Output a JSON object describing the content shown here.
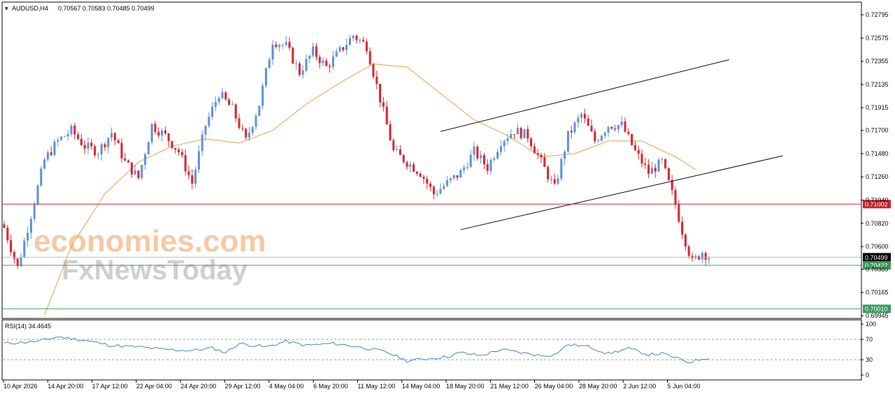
{
  "header": {
    "symbol": "AUDUSD,H4",
    "ohlc": "0.70567 0.70583 0.70485 0.70499"
  },
  "watermark": {
    "line1": "economies.com",
    "line2": "FxNewsToday"
  },
  "rsi_header": "RSI(14) 34.4645",
  "colors": {
    "bull": "#5b8fd6",
    "bear": "#d8202a",
    "ma": "#e0a040",
    "rsi": "#3f80c8",
    "resistance": "#c8202a",
    "support": "#3a9a5a",
    "price_tag": "#000000"
  },
  "price_tags": {
    "resistance": "0.71002",
    "current": "0.70499",
    "support1": "0.70422",
    "support2": "0.70010"
  },
  "chart_data": [
    {
      "type": "candlestick",
      "title": "AUDUSD,H4",
      "ylim": [
        0.69945,
        0.7279
      ],
      "y_ticks": [
        "0.72795",
        "0.72575",
        "0.72355",
        "0.72135",
        "0.71915",
        "0.71700",
        "0.71480",
        "0.71260",
        "0.71040",
        "0.70820",
        "0.70600",
        "0.70385",
        "0.70165",
        "0.69945"
      ],
      "x_ticks": [
        "10 Apr 2026",
        "14 Apr 20:00",
        "17 Apr 12:00",
        "22 Apr 04:00",
        "24 Apr 20:00",
        "29 Apr 12:00",
        "4 May 04:00",
        "6 May 20:00",
        "11 May 12:00",
        "14 May 04:00",
        "18 May 20:00",
        "21 May 12:00",
        "26 May 04:00",
        "28 May 20:00",
        "2 Jun 12:00",
        "5 Jun 04:00"
      ],
      "close_anchors": [
        {
          "i": 0,
          "v": 0.7078
        },
        {
          "i": 4,
          "v": 0.704
        },
        {
          "i": 8,
          "v": 0.709
        },
        {
          "i": 12,
          "v": 0.7142
        },
        {
          "i": 16,
          "v": 0.716
        },
        {
          "i": 20,
          "v": 0.717
        },
        {
          "i": 24,
          "v": 0.7155
        },
        {
          "i": 28,
          "v": 0.715
        },
        {
          "i": 32,
          "v": 0.7168
        },
        {
          "i": 36,
          "v": 0.714
        },
        {
          "i": 40,
          "v": 0.7125
        },
        {
          "i": 44,
          "v": 0.7175
        },
        {
          "i": 48,
          "v": 0.7165
        },
        {
          "i": 52,
          "v": 0.715
        },
        {
          "i": 56,
          "v": 0.712
        },
        {
          "i": 60,
          "v": 0.7175
        },
        {
          "i": 64,
          "v": 0.7205
        },
        {
          "i": 68,
          "v": 0.719
        },
        {
          "i": 72,
          "v": 0.716
        },
        {
          "i": 76,
          "v": 0.7195
        },
        {
          "i": 80,
          "v": 0.7255
        },
        {
          "i": 84,
          "v": 0.725
        },
        {
          "i": 88,
          "v": 0.7225
        },
        {
          "i": 92,
          "v": 0.7245
        },
        {
          "i": 96,
          "v": 0.723
        },
        {
          "i": 100,
          "v": 0.7245
        },
        {
          "i": 104,
          "v": 0.726
        },
        {
          "i": 108,
          "v": 0.725
        },
        {
          "i": 112,
          "v": 0.72
        },
        {
          "i": 116,
          "v": 0.715
        },
        {
          "i": 120,
          "v": 0.714
        },
        {
          "i": 124,
          "v": 0.713
        },
        {
          "i": 128,
          "v": 0.711
        },
        {
          "i": 132,
          "v": 0.712
        },
        {
          "i": 136,
          "v": 0.713
        },
        {
          "i": 140,
          "v": 0.715
        },
        {
          "i": 144,
          "v": 0.7135
        },
        {
          "i": 148,
          "v": 0.716
        },
        {
          "i": 152,
          "v": 0.717
        },
        {
          "i": 156,
          "v": 0.7165
        },
        {
          "i": 160,
          "v": 0.714
        },
        {
          "i": 164,
          "v": 0.7115
        },
        {
          "i": 168,
          "v": 0.7165
        },
        {
          "i": 172,
          "v": 0.7185
        },
        {
          "i": 176,
          "v": 0.716
        },
        {
          "i": 180,
          "v": 0.7175
        },
        {
          "i": 184,
          "v": 0.7175
        },
        {
          "i": 188,
          "v": 0.715
        },
        {
          "i": 192,
          "v": 0.713
        },
        {
          "i": 196,
          "v": 0.714
        },
        {
          "i": 200,
          "v": 0.71
        },
        {
          "i": 202,
          "v": 0.7075
        },
        {
          "i": 205,
          "v": 0.7045
        },
        {
          "i": 208,
          "v": 0.7055
        },
        {
          "i": 210,
          "v": 0.705
        }
      ],
      "moving_average": [
        {
          "i": 12,
          "v": 0.6995
        },
        {
          "i": 20,
          "v": 0.706
        },
        {
          "i": 30,
          "v": 0.711
        },
        {
          "i": 40,
          "v": 0.714
        },
        {
          "i": 50,
          "v": 0.7155
        },
        {
          "i": 60,
          "v": 0.7162
        },
        {
          "i": 70,
          "v": 0.7158
        },
        {
          "i": 80,
          "v": 0.717
        },
        {
          "i": 90,
          "v": 0.7195
        },
        {
          "i": 100,
          "v": 0.7215
        },
        {
          "i": 110,
          "v": 0.7233
        },
        {
          "i": 120,
          "v": 0.723
        },
        {
          "i": 130,
          "v": 0.7205
        },
        {
          "i": 140,
          "v": 0.718
        },
        {
          "i": 150,
          "v": 0.7165
        },
        {
          "i": 160,
          "v": 0.7145
        },
        {
          "i": 170,
          "v": 0.7148
        },
        {
          "i": 180,
          "v": 0.716
        },
        {
          "i": 190,
          "v": 0.716
        },
        {
          "i": 200,
          "v": 0.7145
        },
        {
          "i": 206,
          "v": 0.7133
        }
      ],
      "trend_lines": [
        {
          "name": "channel-upper",
          "from": {
            "i": 130,
            "v": 0.7169
          },
          "to": {
            "i": 216,
            "v": 0.7237
          }
        },
        {
          "name": "channel-lower",
          "from": {
            "i": 136,
            "v": 0.7076
          },
          "to": {
            "i": 232,
            "v": 0.7146
          }
        }
      ],
      "horizontal_levels": [
        {
          "name": "resistance",
          "value": 0.71002
        },
        {
          "name": "current",
          "value": 0.70499
        },
        {
          "name": "support1",
          "value": 0.70422
        },
        {
          "name": "support2",
          "value": 0.7001
        }
      ],
      "bars_visible": 211
    },
    {
      "type": "line",
      "title": "RSI(14) 34.4645",
      "ylim": [
        0,
        100
      ],
      "y_ticks": [
        "100",
        "70",
        "30",
        "0"
      ],
      "levels": [
        70,
        30
      ],
      "anchors": [
        {
          "i": 0,
          "v": 62
        },
        {
          "i": 10,
          "v": 66
        },
        {
          "i": 16,
          "v": 75
        },
        {
          "i": 24,
          "v": 68
        },
        {
          "i": 32,
          "v": 58
        },
        {
          "i": 40,
          "v": 55
        },
        {
          "i": 48,
          "v": 50
        },
        {
          "i": 56,
          "v": 48
        },
        {
          "i": 62,
          "v": 53
        },
        {
          "i": 66,
          "v": 44
        },
        {
          "i": 70,
          "v": 62
        },
        {
          "i": 78,
          "v": 55
        },
        {
          "i": 84,
          "v": 66
        },
        {
          "i": 90,
          "v": 58
        },
        {
          "i": 98,
          "v": 62
        },
        {
          "i": 106,
          "v": 55
        },
        {
          "i": 114,
          "v": 45
        },
        {
          "i": 120,
          "v": 28
        },
        {
          "i": 126,
          "v": 32
        },
        {
          "i": 132,
          "v": 36
        },
        {
          "i": 136,
          "v": 44
        },
        {
          "i": 142,
          "v": 38
        },
        {
          "i": 148,
          "v": 50
        },
        {
          "i": 154,
          "v": 44
        },
        {
          "i": 160,
          "v": 38
        },
        {
          "i": 164,
          "v": 40
        },
        {
          "i": 168,
          "v": 60
        },
        {
          "i": 174,
          "v": 56
        },
        {
          "i": 180,
          "v": 42
        },
        {
          "i": 186,
          "v": 52
        },
        {
          "i": 192,
          "v": 40
        },
        {
          "i": 196,
          "v": 42
        },
        {
          "i": 200,
          "v": 34
        },
        {
          "i": 204,
          "v": 25
        },
        {
          "i": 208,
          "v": 32
        },
        {
          "i": 210,
          "v": 34.46
        }
      ]
    }
  ]
}
